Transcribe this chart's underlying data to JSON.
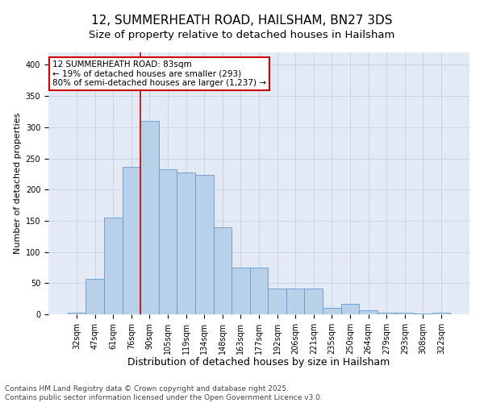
{
  "title_line1": "12, SUMMERHEATH ROAD, HAILSHAM, BN27 3DS",
  "title_line2": "Size of property relative to detached houses in Hailsham",
  "xlabel": "Distribution of detached houses by size in Hailsham",
  "ylabel": "Number of detached properties",
  "categories": [
    "32sqm",
    "47sqm",
    "61sqm",
    "76sqm",
    "90sqm",
    "105sqm",
    "119sqm",
    "134sqm",
    "148sqm",
    "163sqm",
    "177sqm",
    "192sqm",
    "206sqm",
    "221sqm",
    "235sqm",
    "250sqm",
    "264sqm",
    "279sqm",
    "293sqm",
    "308sqm",
    "322sqm"
  ],
  "values": [
    2,
    57,
    155,
    237,
    310,
    232,
    228,
    223,
    140,
    75,
    75,
    42,
    42,
    42,
    10,
    17,
    7,
    3,
    2,
    1,
    2
  ],
  "bar_color": "#b8d0e8",
  "bar_edge_color": "#6699cc",
  "vline_x": 3.5,
  "vline_color": "#cc0000",
  "annotation_text": "12 SUMMERHEATH ROAD: 83sqm\n← 19% of detached houses are smaller (293)\n80% of semi-detached houses are larger (1,237) →",
  "annotation_box_color": "#ffffff",
  "annotation_box_edge": "#cc0000",
  "ylim": [
    0,
    420
  ],
  "yticks": [
    0,
    50,
    100,
    150,
    200,
    250,
    300,
    350,
    400
  ],
  "grid_color": "#c8d4e8",
  "bg_color": "#e4eaf5",
  "footer_line1": "Contains HM Land Registry data © Crown copyright and database right 2025.",
  "footer_line2": "Contains public sector information licensed under the Open Government Licence v3.0.",
  "title_fontsize": 11,
  "subtitle_fontsize": 9.5,
  "xlabel_fontsize": 9,
  "ylabel_fontsize": 8,
  "tick_fontsize": 7,
  "annotation_fontsize": 7.5,
  "footer_fontsize": 6.5
}
